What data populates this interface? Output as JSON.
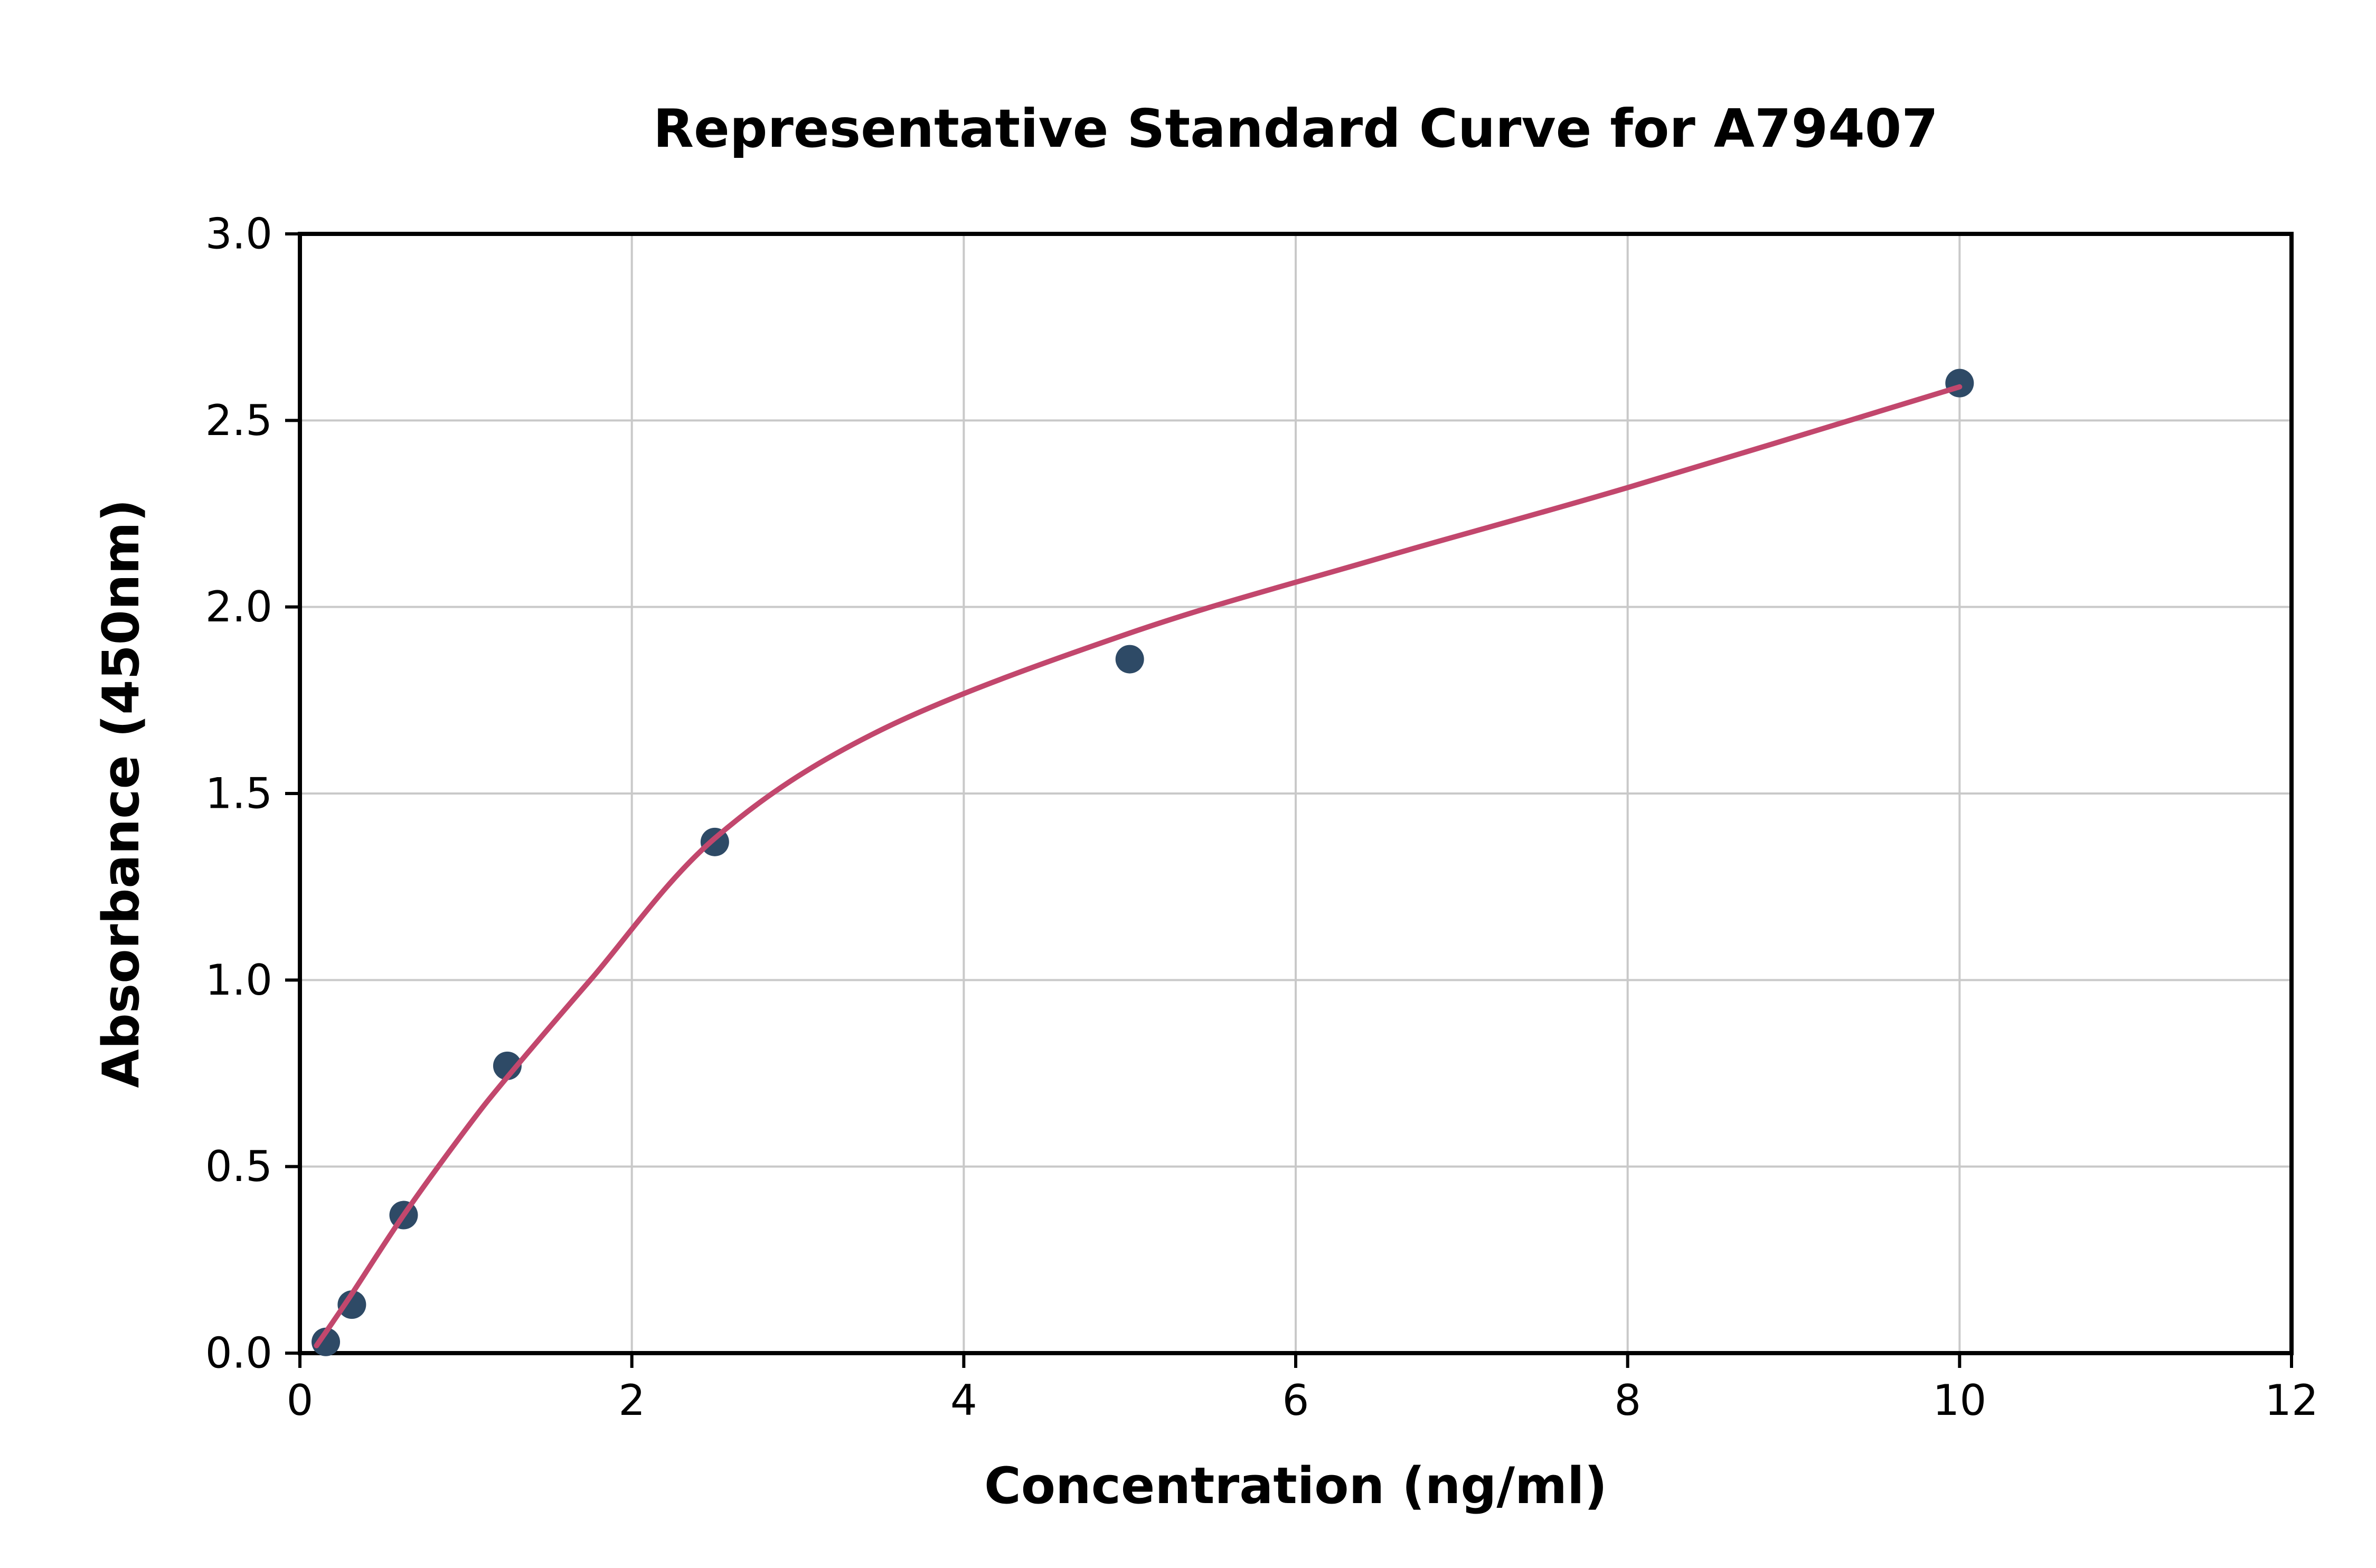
{
  "page": {
    "background_color": "#ffffff"
  },
  "chart": {
    "title": "Representative Standard Curve for A79407",
    "xlabel": "Concentration (ng/ml)",
    "ylabel": "Absorbance (450nm)"
  },
  "chart_data": {
    "type": "scatter",
    "title": "Representative Standard Curve for A79407",
    "xlabel": "Concentration (ng/ml)",
    "ylabel": "Absorbance (450nm)",
    "xlim": [
      0,
      12
    ],
    "ylim": [
      0,
      3.0
    ],
    "x_ticks": [
      0,
      2,
      4,
      6,
      8,
      10,
      12
    ],
    "x_tick_labels": [
      "0",
      "2",
      "4",
      "6",
      "8",
      "10",
      "12"
    ],
    "y_ticks": [
      0.0,
      0.5,
      1.0,
      1.5,
      2.0,
      2.5,
      3.0
    ],
    "y_tick_labels": [
      "0.0",
      "0.5",
      "1.0",
      "1.5",
      "2.0",
      "2.5",
      "3.0"
    ],
    "grid": true,
    "grid_color": "#c9c9c9",
    "border_color": "#000000",
    "legend": "none",
    "series": [
      {
        "name": "standard-points",
        "type": "scatter",
        "color": "#2e4a66",
        "marker": "circle",
        "points": [
          [
            0.156,
            0.03
          ],
          [
            0.313,
            0.13
          ],
          [
            0.625,
            0.37
          ],
          [
            1.25,
            0.77
          ],
          [
            2.5,
            1.37
          ],
          [
            5.0,
            1.86
          ],
          [
            10.0,
            2.6
          ]
        ]
      },
      {
        "name": "fit-curve",
        "type": "line",
        "color": "#c2476d",
        "points": [
          [
            0.1,
            0.02
          ],
          [
            0.3,
            0.15
          ],
          [
            0.625,
            0.37
          ],
          [
            1.0,
            0.6
          ],
          [
            1.25,
            0.74
          ],
          [
            1.75,
            1.0
          ],
          [
            2.5,
            1.38
          ],
          [
            3.5,
            1.67
          ],
          [
            5.0,
            1.93
          ],
          [
            6.5,
            2.13
          ],
          [
            8.0,
            2.32
          ],
          [
            10.0,
            2.59
          ]
        ]
      }
    ]
  }
}
